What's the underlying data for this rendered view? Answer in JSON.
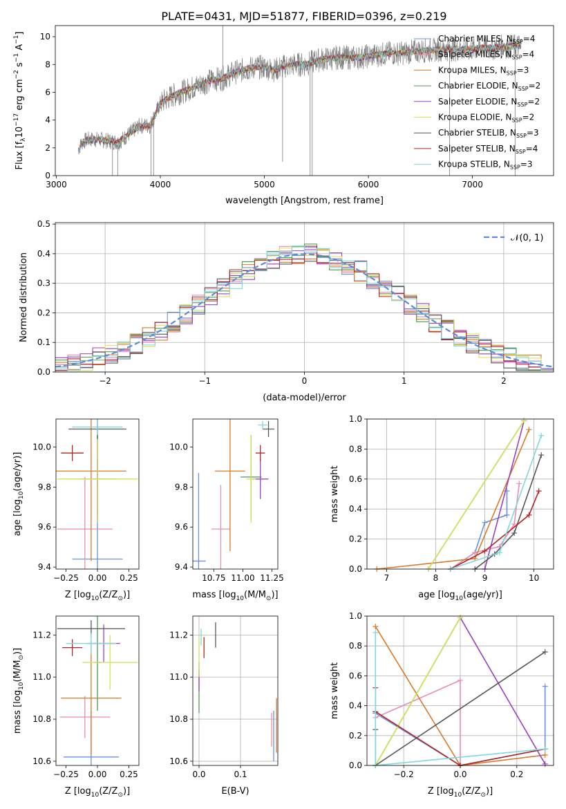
{
  "figure": {
    "title": "PLATE=0431, MJD=51877, FIBERID=0396, z=0.219"
  },
  "series": [
    {
      "name": "Chabrier MILES, N$_{SSP}$=4",
      "label": "Chabrier MILES, N",
      "n": "4",
      "color": "#6a8fd8"
    },
    {
      "name": "Salpeter MILES, N$_{SSP}$=4",
      "label": "Salpeter MILES, N",
      "n": "4",
      "color": "#e88bb8"
    },
    {
      "name": "Kroupa MILES, N$_{SSP}$=3",
      "label": "Kroupa MILES, N",
      "n": "3",
      "color": "#d9782a"
    },
    {
      "name": "Chabrier ELODIE, N$_{SSP}$=2",
      "label": "Chabrier ELODIE, N",
      "n": "2",
      "color": "#4f9a4f"
    },
    {
      "name": "Salpeter ELODIE, N$_{SSP}$=2",
      "label": "Salpeter ELODIE, N",
      "n": "2",
      "color": "#9b3fc0"
    },
    {
      "name": "Kroupa ELODIE, N$_{SSP}$=2",
      "label": "Kroupa ELODIE, N",
      "n": "2",
      "color": "#d4e35a"
    },
    {
      "name": "Chabrier STELIB, N$_{SSP}$=3",
      "label": "Chabrier STELIB, N",
      "n": "3",
      "color": "#555555"
    },
    {
      "name": "Salpeter STELIB, N$_{SSP}$=4",
      "label": "Salpeter STELIB, N",
      "n": "4",
      "color": "#b22222"
    },
    {
      "name": "Kroupa STELIB, N$_{SSP}$=3",
      "label": "Kroupa STELIB, N",
      "n": "3",
      "color": "#7fd6dc"
    }
  ],
  "sub_ssp": "SSP",
  "chart_data": [
    {
      "id": "spectrum",
      "type": "line",
      "xlabel": "wavelength [Angstrom, rest frame]",
      "ylabel_main": "Flux [f",
      "ylabel_sub": "λ",
      "ylabel_rest": "10",
      "ylabel_exp": "−17",
      "ylabel_tail": " erg cm",
      "ylabel_exp2": "−2",
      "ylabel_tail2": " s",
      "ylabel_exp3": "−1",
      "ylabel_tail3": " A",
      "ylabel_exp4": "−1",
      "ylabel_end": "]",
      "xlim": [
        2990,
        7780
      ],
      "ylim": [
        0,
        10.8
      ],
      "xticks": [
        3000,
        4000,
        5000,
        6000,
        7000
      ],
      "xtick_labels": [
        "3000",
        "4000",
        "5000",
        "6000",
        "7000"
      ],
      "yticks": [
        0,
        2,
        4,
        6,
        8,
        10
      ],
      "ytick_labels": [
        "0",
        "2",
        "4",
        "6",
        "8",
        "10"
      ],
      "data_color": "#808080",
      "continuum_x": [
        3200,
        3250,
        3300,
        3400,
        3500,
        3600,
        3700,
        3800,
        3900,
        4000,
        4100,
        4200,
        4300,
        4400,
        4500,
        4600,
        4700,
        4800,
        4900,
        5000,
        5100,
        5200,
        5300,
        5400,
        5500,
        5600,
        5700,
        5800,
        5900,
        6000,
        6100,
        6200,
        6300,
        6400,
        6500,
        6600,
        6700,
        6800,
        6900,
        7000,
        7100,
        7200,
        7300,
        7400,
        7500
      ],
      "continuum_y": [
        1.8,
        2.4,
        2.6,
        2.6,
        2.5,
        2.4,
        3.0,
        3.6,
        3.6,
        5.2,
        5.7,
        6.0,
        6.3,
        6.6,
        6.9,
        7.0,
        7.4,
        7.6,
        7.8,
        7.8,
        7.6,
        7.9,
        8.0,
        8.0,
        8.3,
        8.4,
        8.5,
        8.5,
        8.5,
        8.6,
        8.7,
        8.8,
        8.8,
        8.9,
        9.0,
        9.0,
        9.1,
        9.1,
        9.1,
        9.1,
        9.2,
        9.2,
        9.3,
        9.3,
        9.4
      ]
    },
    {
      "id": "residuals",
      "type": "histogram",
      "xlabel": "(data-model)/error",
      "ylabel": "Normed distribution",
      "xlim": [
        -2.5,
        2.5
      ],
      "ylim": [
        0,
        0.505
      ],
      "xticks": [
        -2,
        -1,
        0,
        1,
        2
      ],
      "xtick_labels": [
        "−2",
        "−1",
        "0",
        "1",
        "2"
      ],
      "yticks": [
        0,
        0.1,
        0.2,
        0.3,
        0.4,
        0.5
      ],
      "ytick_labels": [
        "0.0",
        "0.1",
        "0.2",
        "0.3",
        "0.4",
        "0.5"
      ],
      "bin_width": 0.125,
      "gauss_label": "𝒩(0, 1)",
      "gauss_color": "#5b8bd8",
      "grid": true
    },
    {
      "id": "age_vs_Z",
      "type": "errorbar",
      "xlabel": "Z [log",
      "xlabel_sub": "10",
      "xlabel_rest": "(Z/Z",
      "xlabel_sub2": "⊙",
      "xlabel_end": ")]",
      "ylabel_a": "age  [log",
      "ylabel_sub": "10",
      "ylabel_b": "(age/yr)]",
      "xlim": [
        -0.33,
        0.33
      ],
      "ylim": [
        9.39,
        10.14
      ],
      "xticks": [
        -0.25,
        0,
        0.25
      ],
      "xtick_labels": [
        "−0.25",
        "0.00",
        "0.25"
      ],
      "yticks": [
        9.4,
        9.6,
        9.8,
        10.0
      ],
      "ytick_labels": [
        "9.4",
        "9.6",
        "9.8",
        "10.0"
      ],
      "points": [
        {
          "s": 0,
          "x": 0.0,
          "y": 9.44,
          "xerr": 0.2,
          "yerr": 0.5
        },
        {
          "s": 1,
          "x": -0.1,
          "y": 9.59,
          "xerr": 0.22,
          "yerr": 0.26
        },
        {
          "s": 2,
          "x": -0.05,
          "y": 9.88,
          "xerr": 0.28,
          "yerr": 0.45
        },
        {
          "s": 3,
          "x": 0.0,
          "y": 9.84,
          "xerr": 0.04,
          "yerr": 0.22
        },
        {
          "s": 4,
          "x": 0.0,
          "y": 9.84,
          "xerr": 0.15,
          "yerr": 0.2
        },
        {
          "s": 5,
          "x": 0.0,
          "y": 9.84,
          "xerr": 0.32,
          "yerr": 0.22
        },
        {
          "s": 6,
          "x": 0.0,
          "y": 10.09,
          "xerr": 0.23,
          "yerr": 0.05
        },
        {
          "s": 7,
          "x": -0.2,
          "y": 9.97,
          "xerr": 0.09,
          "yerr": 0.04
        },
        {
          "s": 8,
          "x": 0.0,
          "y": 10.1,
          "xerr": 0.2,
          "yerr": 0.04
        }
      ]
    },
    {
      "id": "age_vs_mass",
      "type": "errorbar",
      "xlabel": "mass [log",
      "xlabel_sub": "10",
      "xlabel_rest": "(M/M",
      "xlabel_sub2": "⊙",
      "xlabel_end": ")]",
      "xlim": [
        10.57,
        11.3
      ],
      "ylim": [
        9.39,
        10.14
      ],
      "xticks": [
        10.75,
        11.0,
        11.25
      ],
      "xtick_labels": [
        "10.75",
        "11.00",
        "11.25"
      ],
      "yticks": [
        9.4,
        9.6,
        9.8,
        10.0
      ],
      "ytick_labels": [
        "9.4",
        "9.6",
        "9.8",
        "10.0"
      ],
      "points": [
        {
          "s": 0,
          "x": 10.62,
          "y": 9.43,
          "xerr": 0.06,
          "yerr": 0.44
        },
        {
          "s": 1,
          "x": 10.81,
          "y": 9.59,
          "xerr": 0.08,
          "yerr": 0.22
        },
        {
          "s": 2,
          "x": 10.89,
          "y": 9.88,
          "xerr": 0.13,
          "yerr": 0.4
        },
        {
          "s": 3,
          "x": 11.07,
          "y": 9.85,
          "xerr": 0.09,
          "yerr": 0.21
        },
        {
          "s": 4,
          "x": 11.15,
          "y": 9.84,
          "xerr": 0.07,
          "yerr": 0.1
        },
        {
          "s": 5,
          "x": 11.07,
          "y": 9.84,
          "xerr": 0.04,
          "yerr": 0.22
        },
        {
          "s": 6,
          "x": 11.22,
          "y": 10.09,
          "xerr": 0.05,
          "yerr": 0.04
        },
        {
          "s": 7,
          "x": 11.15,
          "y": 9.97,
          "xerr": 0.04,
          "yerr": 0.04
        },
        {
          "s": 8,
          "x": 11.17,
          "y": 10.11,
          "xerr": 0.04,
          "yerr": 0.02
        }
      ]
    },
    {
      "id": "mw_vs_age",
      "type": "line",
      "xlabel_a": "age  [log",
      "xlabel_sub": "10",
      "xlabel_b": "(age/yr)]",
      "ylabel": "mass weight",
      "xlim": [
        6.6,
        10.4
      ],
      "ylim": [
        0,
        1
      ],
      "xticks": [
        7,
        8,
        9,
        10
      ],
      "xtick_labels": [
        "7",
        "8",
        "9",
        "10"
      ],
      "yticks": [
        0,
        0.2,
        0.4,
        0.6,
        0.8,
        1.0
      ],
      "ytick_labels": [
        "0.0",
        "0.2",
        "0.4",
        "0.6",
        "0.8",
        "1.0"
      ],
      "lines": [
        {
          "s": 0,
          "x": [
            8.3,
            8.8,
            9.0,
            9.45,
            9.45
          ],
          "y": [
            0,
            0.11,
            0.31,
            0.36,
            0.52
          ]
        },
        {
          "s": 1,
          "x": [
            8.3,
            8.8,
            9.3,
            9.6,
            9.7
          ],
          "y": [
            0,
            0.11,
            0.15,
            0.3,
            0.57
          ]
        },
        {
          "s": 2,
          "x": [
            6.8,
            8.8,
            9.9
          ],
          "y": [
            0,
            0.07,
            0.93
          ]
        },
        {
          "s": 3,
          "x": [
            7.85,
            9.8
          ],
          "y": [
            0,
            0.99
          ]
        },
        {
          "s": 4,
          "x": [
            9.0,
            9.8
          ],
          "y": [
            0,
            0.99
          ]
        },
        {
          "s": 5,
          "x": [
            7.85,
            9.8
          ],
          "y": [
            0,
            0.99
          ]
        },
        {
          "s": 6,
          "x": [
            8.8,
            9.2,
            9.6,
            10.15
          ],
          "y": [
            0,
            0.1,
            0.24,
            0.76
          ]
        },
        {
          "s": 7,
          "x": [
            8.3,
            9.0,
            9.9,
            10.1
          ],
          "y": [
            0,
            0.12,
            0.36,
            0.52
          ]
        },
        {
          "s": 8,
          "x": [
            8.3,
            9.3,
            10.15
          ],
          "y": [
            0,
            0.11,
            0.89
          ]
        }
      ]
    },
    {
      "id": "mass_vs_Z",
      "type": "errorbar",
      "xlabel": "Z [log",
      "xlabel_sub": "10",
      "xlabel_rest": "(Z/Z",
      "xlabel_sub2": "⊙",
      "xlabel_end": ")]",
      "ylabel_a": "mass [log",
      "ylabel_sub": "10",
      "ylabel_b": "(M/M",
      "ylabel_sub2": "⊙",
      "ylabel_c": ")]",
      "xlim": [
        -0.33,
        0.33
      ],
      "ylim": [
        10.58,
        11.29
      ],
      "xticks": [
        -0.25,
        0,
        0.25
      ],
      "xtick_labels": [
        "−0.25",
        "0.00",
        "0.25"
      ],
      "yticks": [
        10.6,
        10.8,
        11.0,
        11.2
      ],
      "ytick_labels": [
        "10.6",
        "10.8",
        "11.0",
        "11.2"
      ],
      "points": [
        {
          "s": 0,
          "x": -0.05,
          "y": 10.62,
          "xerr": 0.22,
          "yerr": 0.22
        },
        {
          "s": 1,
          "x": -0.1,
          "y": 10.81,
          "xerr": 0.2,
          "yerr": 0.1
        },
        {
          "s": 2,
          "x": -0.05,
          "y": 10.9,
          "xerr": 0.24,
          "yerr": 0.27
        },
        {
          "s": 3,
          "x": 0.0,
          "y": 11.07,
          "xerr": 0.03,
          "yerr": 0.23
        },
        {
          "s": 4,
          "x": 0.05,
          "y": 11.16,
          "xerr": 0.13,
          "yerr": 0.09
        },
        {
          "s": 5,
          "x": 0.1,
          "y": 11.07,
          "xerr": 0.22,
          "yerr": 0.13
        },
        {
          "s": 6,
          "x": -0.05,
          "y": 11.23,
          "xerr": 0.27,
          "yerr": 0.04
        },
        {
          "s": 7,
          "x": -0.2,
          "y": 11.14,
          "xerr": 0.08,
          "yerr": 0.04
        },
        {
          "s": 8,
          "x": -0.05,
          "y": 11.16,
          "xerr": 0.2,
          "yerr": 0.05
        }
      ]
    },
    {
      "id": "mass_vs_EBV",
      "type": "errorbar",
      "xlabel": "E(B-V)",
      "xlim": [
        -0.015,
        0.19
      ],
      "ylim": [
        10.58,
        11.29
      ],
      "xticks": [
        0,
        0.1
      ],
      "xtick_labels": [
        "0.0",
        "0.1"
      ],
      "yticks": [
        10.6,
        10.8,
        11.0,
        11.2
      ],
      "ytick_labels": [
        "10.6",
        "10.8",
        "11.0",
        "11.2"
      ],
      "points": [
        {
          "s": 0,
          "x": 0.18,
          "y": 10.72,
          "xerr": 0.0,
          "yerr": 0.12
        },
        {
          "s": 1,
          "x": 0.175,
          "y": 10.75,
          "xerr": 0.0,
          "yerr": 0.08
        },
        {
          "s": 2,
          "x": 0.187,
          "y": 10.77,
          "xerr": 0.0,
          "yerr": 0.13
        },
        {
          "s": 3,
          "x": 0.0,
          "y": 10.93,
          "xerr": 0.0,
          "yerr": 0.1
        },
        {
          "s": 4,
          "x": 0.0,
          "y": 11.0,
          "xerr": 0.0,
          "yerr": 0.07
        },
        {
          "s": 5,
          "x": 0.0,
          "y": 11.1,
          "xerr": 0.0,
          "yerr": 0.1
        },
        {
          "s": 6,
          "x": 0.04,
          "y": 11.2,
          "xerr": 0.0,
          "yerr": 0.06
        },
        {
          "s": 7,
          "x": 0.012,
          "y": 11.14,
          "xerr": 0.0,
          "yerr": 0.05
        },
        {
          "s": 8,
          "x": 0.005,
          "y": 11.19,
          "xerr": 0.0,
          "yerr": 0.04
        }
      ]
    },
    {
      "id": "mw_vs_Z",
      "type": "line",
      "xlabel": "Z [log",
      "xlabel_sub": "10",
      "xlabel_rest": "(Z/Z",
      "xlabel_sub2": "⊙",
      "xlabel_end": ")]",
      "ylabel": "mass weight",
      "xlim": [
        -0.33,
        0.33
      ],
      "ylim": [
        0,
        1
      ],
      "xticks": [
        -0.2,
        0,
        0.2
      ],
      "xtick_labels": [
        "−0.2",
        "0.0",
        "0.2"
      ],
      "yticks": [
        0,
        0.2,
        0.4,
        0.6,
        0.8,
        1.0
      ],
      "ytick_labels": [
        "0.0",
        "0.2",
        "0.4",
        "0.6",
        "0.8",
        "1.0"
      ],
      "lines": [
        {
          "s": 0,
          "x": [
            -0.3,
            0.0,
            0.3,
            0.3
          ],
          "y": [
            0.35,
            0.0,
            0.11,
            0.53
          ]
        },
        {
          "s": 1,
          "x": [
            -0.3,
            0.0,
            0.0
          ],
          "y": [
            0.32,
            0.57,
            0.0
          ]
        },
        {
          "s": 2,
          "x": [
            -0.3,
            0.0,
            0.3
          ],
          "y": [
            0.93,
            0.0,
            0.07
          ]
        },
        {
          "s": 3,
          "x": [
            -0.3,
            0.0
          ],
          "y": [
            0.0,
            0.99
          ]
        },
        {
          "s": 4,
          "x": [
            0.0,
            0.3
          ],
          "y": [
            0.99,
            0.01
          ]
        },
        {
          "s": 5,
          "x": [
            -0.3,
            0.0
          ],
          "y": [
            0.0,
            0.99
          ]
        },
        {
          "s": 6,
          "x": [
            -0.3,
            -0.3,
            0.3
          ],
          "y": [
            0.24,
            0.0,
            0.76
          ]
        },
        {
          "s": 7,
          "x": [
            -0.3,
            -0.3,
            0.0,
            0.3
          ],
          "y": [
            0.52,
            0.36,
            0.0,
            0.11
          ]
        },
        {
          "s": 8,
          "x": [
            -0.3,
            -0.3,
            0.3
          ],
          "y": [
            0.89,
            0.0,
            0.11
          ]
        }
      ]
    }
  ]
}
